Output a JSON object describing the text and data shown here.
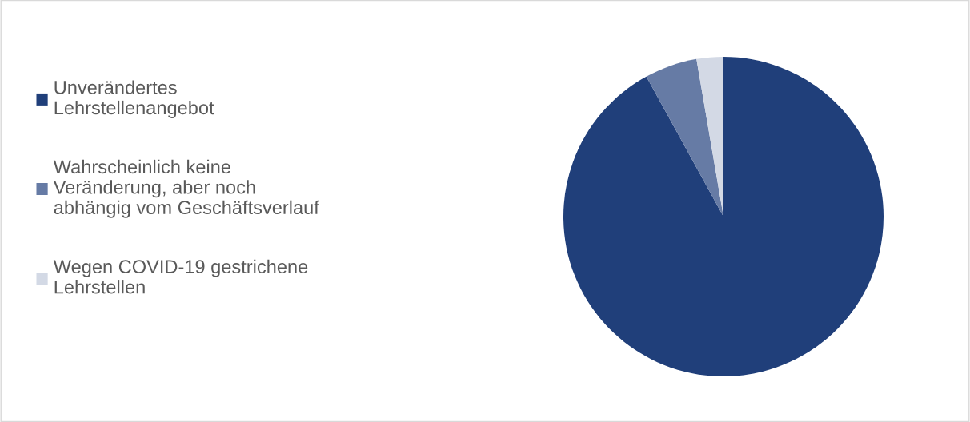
{
  "chart_data": {
    "type": "pie",
    "categories": [
      "Unverändertes\nLehrstellenangebot",
      "Wahrscheinlich keine\nVeränderung, aber noch\nabhängig vom Geschäftsverlauf",
      "Wegen COVID-19 gestrichene\nLehrstellen"
    ],
    "values": [
      92,
      5.3,
      2.7
    ],
    "colors": [
      "#203f7a",
      "#667ba5",
      "#d3d9e5"
    ],
    "legend": "left"
  }
}
